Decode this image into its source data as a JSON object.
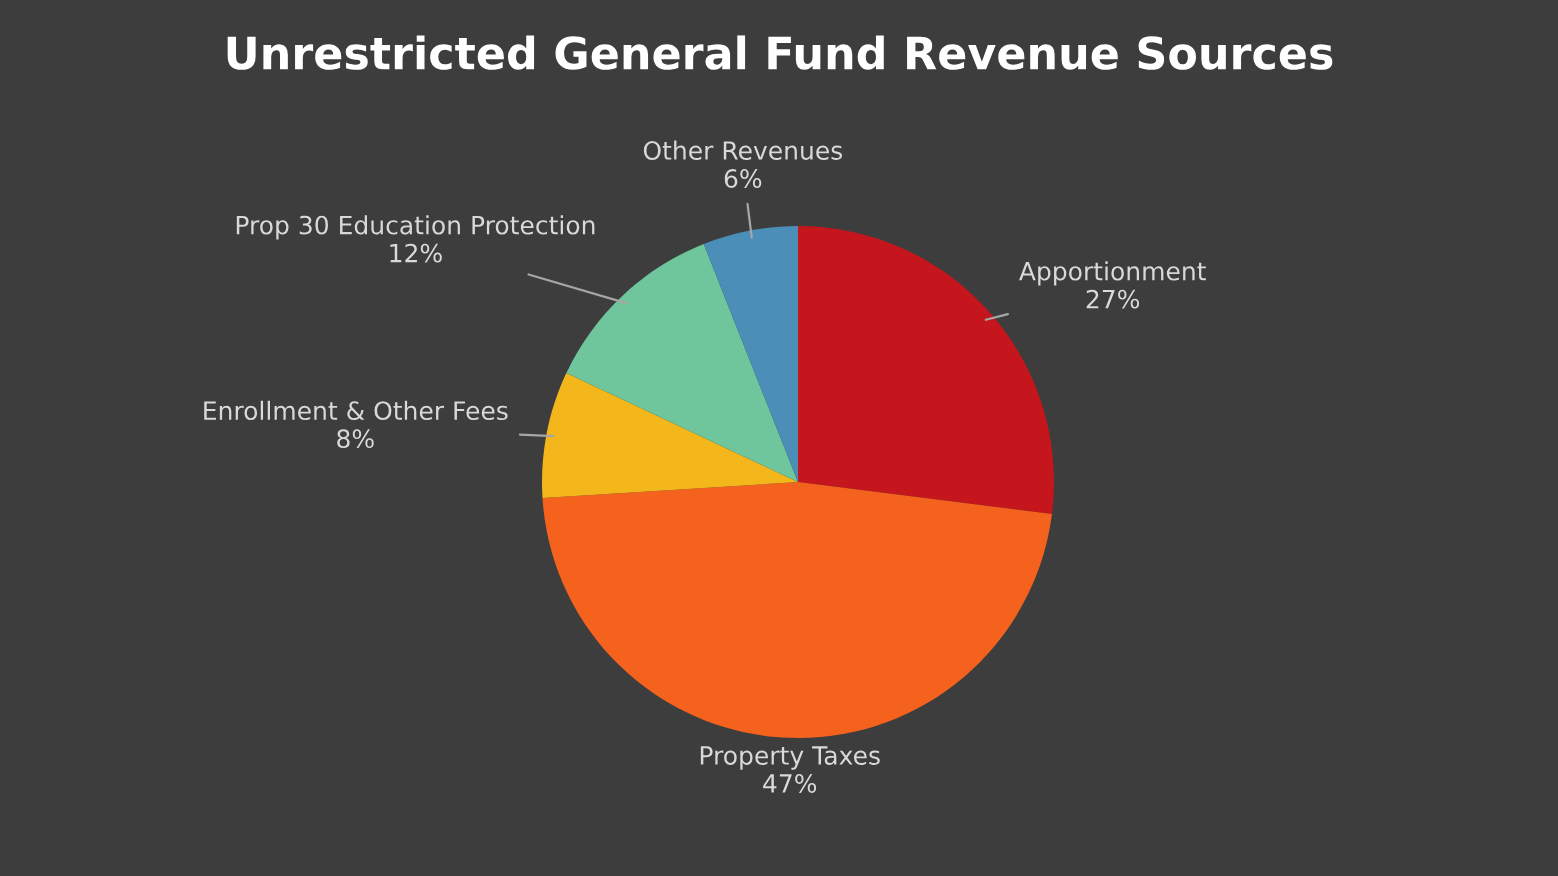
{
  "chart_data": {
    "type": "pie",
    "title": "Unrestricted General Fund Revenue Sources",
    "categories": [
      "Apportionment",
      "Property Taxes",
      "Enrollment & Other Fees",
      "Prop 30 Education Protection",
      "Other Revenues"
    ],
    "values": [
      27,
      47,
      8,
      12,
      6
    ],
    "value_labels": [
      "27%",
      "47%",
      "8%",
      "12%",
      "6%"
    ],
    "colors": [
      "#c4161c",
      "#f5621e",
      "#f4b71b",
      "#6fc59c",
      "#4b8fb8"
    ]
  }
}
